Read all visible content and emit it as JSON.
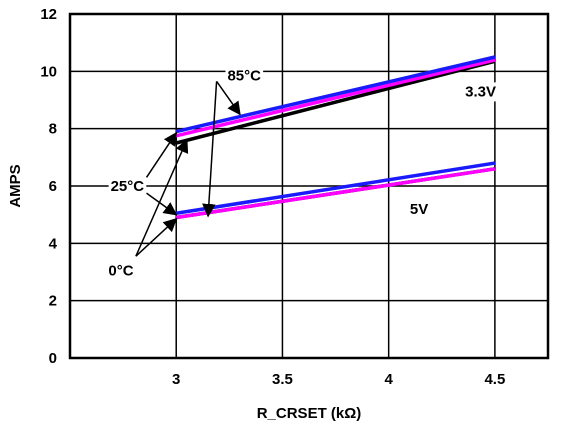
{
  "chart_data": {
    "type": "line",
    "xlabel": "R_CRSET (kΩ)",
    "ylabel": "AMPS",
    "xlim": [
      2.5,
      4.75
    ],
    "ylim": [
      0,
      12
    ],
    "xticks": [
      3,
      3.5,
      4,
      4.5
    ],
    "yticks": [
      0,
      2,
      4,
      6,
      8,
      10,
      12
    ],
    "xtick_labels": [
      "3",
      "3.5",
      "4",
      "4.5"
    ],
    "ytick_labels": [
      "0",
      "2",
      "4",
      "6",
      "8",
      "10",
      "12"
    ],
    "grid": true,
    "series": [
      {
        "group": "3.3V",
        "temp": "0°C",
        "color": "#000000",
        "x": [
          3,
          4.5
        ],
        "y": [
          7.5,
          10.35
        ]
      },
      {
        "group": "3.3V",
        "temp": "25°C",
        "color": "#ff00ff",
        "x": [
          3,
          4.5
        ],
        "y": [
          7.75,
          10.4
        ]
      },
      {
        "group": "3.3V",
        "temp": "85°C",
        "color": "#1a1aff",
        "x": [
          3,
          4.5
        ],
        "y": [
          7.9,
          10.5
        ]
      },
      {
        "group": "5V",
        "temp": "0°C",
        "color": "#000000",
        "x": [
          3,
          4.5
        ],
        "y": [
          4.9,
          6.6
        ]
      },
      {
        "group": "5V",
        "temp": "25°C",
        "color": "#ff00ff",
        "x": [
          3,
          4.5
        ],
        "y": [
          4.9,
          6.6
        ]
      },
      {
        "group": "5V",
        "temp": "85°C",
        "color": "#1a1aff",
        "x": [
          3,
          4.5
        ],
        "y": [
          5.05,
          6.8
        ]
      }
    ],
    "annotations": [
      {
        "text": "85°C",
        "x": 3.32,
        "y": 9.85,
        "anchor": "middle"
      },
      {
        "text": "25°C",
        "x": 2.77,
        "y": 6.0,
        "anchor": "middle"
      },
      {
        "text": "0°C",
        "x": 2.74,
        "y": 3.05,
        "anchor": "middle"
      },
      {
        "text": "3.3V",
        "x": 4.36,
        "y": 9.3,
        "anchor": "start"
      },
      {
        "text": "5V",
        "x": 4.1,
        "y": 5.2,
        "anchor": "start"
      }
    ],
    "arrows": [
      {
        "from": [
          3.19,
          9.65
        ],
        "to": [
          3.3,
          8.5
        ]
      },
      {
        "from": [
          3.19,
          9.65
        ],
        "to": [
          3.15,
          4.95
        ]
      },
      {
        "from": [
          2.86,
          6.3
        ],
        "to": [
          3.0,
          7.85
        ]
      },
      {
        "from": [
          2.86,
          5.75
        ],
        "to": [
          3.0,
          5.0
        ]
      },
      {
        "from": [
          2.81,
          3.55
        ],
        "to": [
          3.05,
          7.6
        ]
      },
      {
        "from": [
          2.81,
          3.55
        ],
        "to": [
          3.0,
          4.85
        ]
      }
    ]
  }
}
